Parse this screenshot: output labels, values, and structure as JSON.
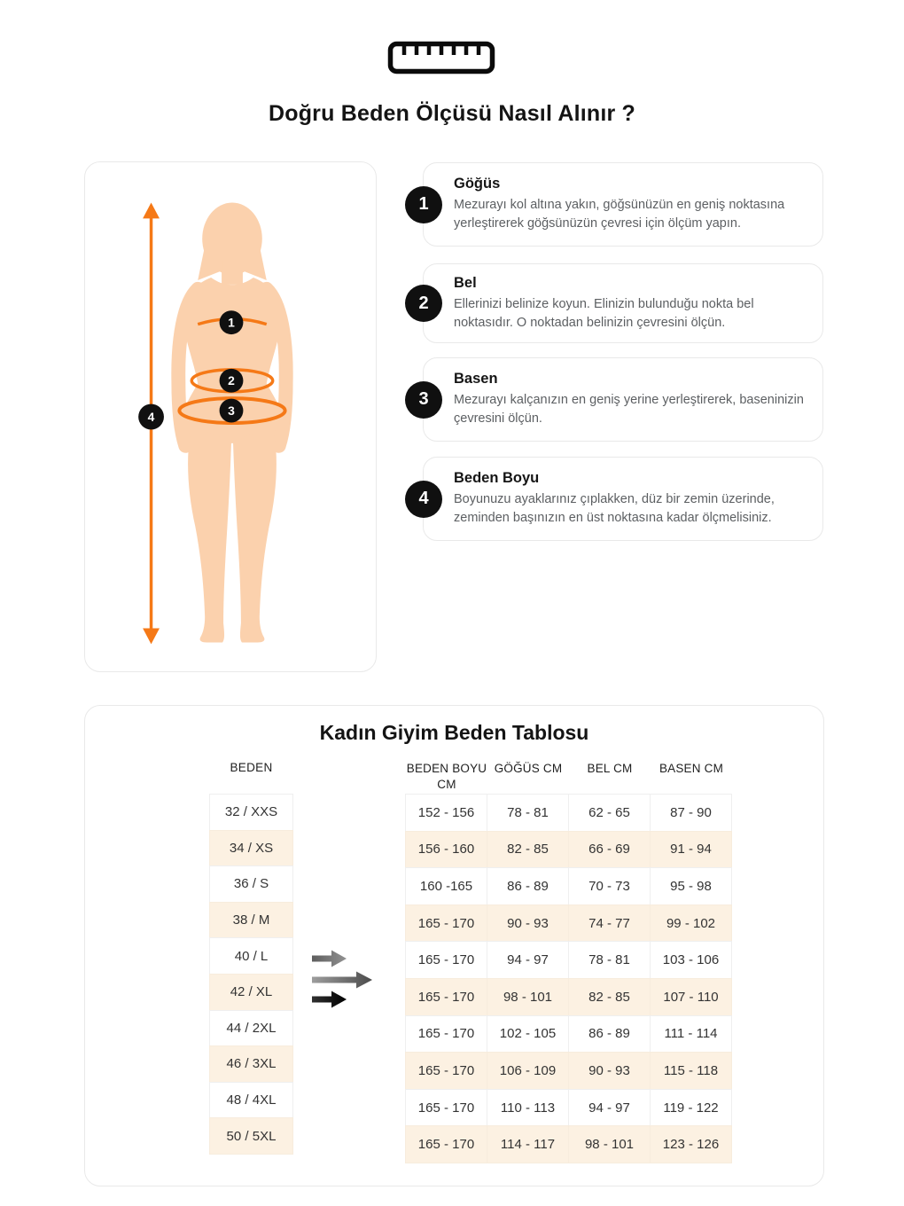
{
  "page": {
    "title": "Doğru Beden Ölçüsü Nasıl Alınır ?"
  },
  "steps": [
    {
      "number": "1",
      "title": "Göğüs",
      "text": "Mezurayı kol altına yakın, göğsünüzün en geniş noktasına yerleştirerek göğsünüzün çevresi için ölçüm yapın."
    },
    {
      "number": "2",
      "title": "Bel",
      "text": "Ellerinizi belinize koyun. Elinizin bulunduğu nokta bel noktasıdır. O noktadan belinizin çevresini ölçün."
    },
    {
      "number": "3",
      "title": "Basen",
      "text": "Mezurayı kalçanızın en geniş yerine yerleştirerek, baseninizin çevresini ölçün."
    },
    {
      "number": "4",
      "title": "Beden Boyu",
      "text": "Boyunuzu ayaklarınız çıplakken, düz bir zemin üzerinde, zeminden başınızın en üst noktasına kadar ölçmelisiniz."
    }
  ],
  "figure": {
    "markers": [
      "1",
      "2",
      "3",
      "4"
    ]
  },
  "size_table": {
    "title": "Kadın Giyim Beden Tablosu",
    "size_header": "BEDEN",
    "measure_headers": [
      "BEDEN BOYU CM",
      "GÖĞÜS CM",
      "BEL CM",
      "BASEN CM"
    ],
    "rows": [
      {
        "size": "32 / XXS",
        "height": "152 - 156",
        "chest": "78 - 81",
        "waist": "62 - 65",
        "hip": "87 - 90"
      },
      {
        "size": "34 / XS",
        "height": "156 - 160",
        "chest": "82 - 85",
        "waist": "66 - 69",
        "hip": "91 - 94"
      },
      {
        "size": "36 / S",
        "height": "160 -165",
        "chest": "86 - 89",
        "waist": "70 - 73",
        "hip": "95 - 98"
      },
      {
        "size": "38 / M",
        "height": "165 - 170",
        "chest": "90 - 93",
        "waist": "74 - 77",
        "hip": "99 - 102"
      },
      {
        "size": "40 / L",
        "height": "165 - 170",
        "chest": "94 - 97",
        "waist": "78 - 81",
        "hip": "103 - 106"
      },
      {
        "size": "42 / XL",
        "height": "165 - 170",
        "chest": "98 - 101",
        "waist": "82 - 85",
        "hip": "107 - 110"
      },
      {
        "size": "44 / 2XL",
        "height": "165 - 170",
        "chest": "102 - 105",
        "waist": "86 - 89",
        "hip": "111 - 114"
      },
      {
        "size": "46 / 3XL",
        "height": "165 - 170",
        "chest": "106 - 109",
        "waist": "90 - 93",
        "hip": "115 - 118"
      },
      {
        "size": "48 / 4XL",
        "height": "165 - 170",
        "chest": "110 - 113",
        "waist": "94 - 97",
        "hip": "119 - 122"
      },
      {
        "size": "50 / 5XL",
        "height": "165 - 170",
        "chest": "114 - 117",
        "waist": "98 - 101",
        "hip": "123 - 126"
      }
    ]
  },
  "colors": {
    "accent_orange": "#F57917",
    "body_fill": "#FBD1AD",
    "row_highlight": "#FCF1E2",
    "badge_black": "#101010"
  }
}
